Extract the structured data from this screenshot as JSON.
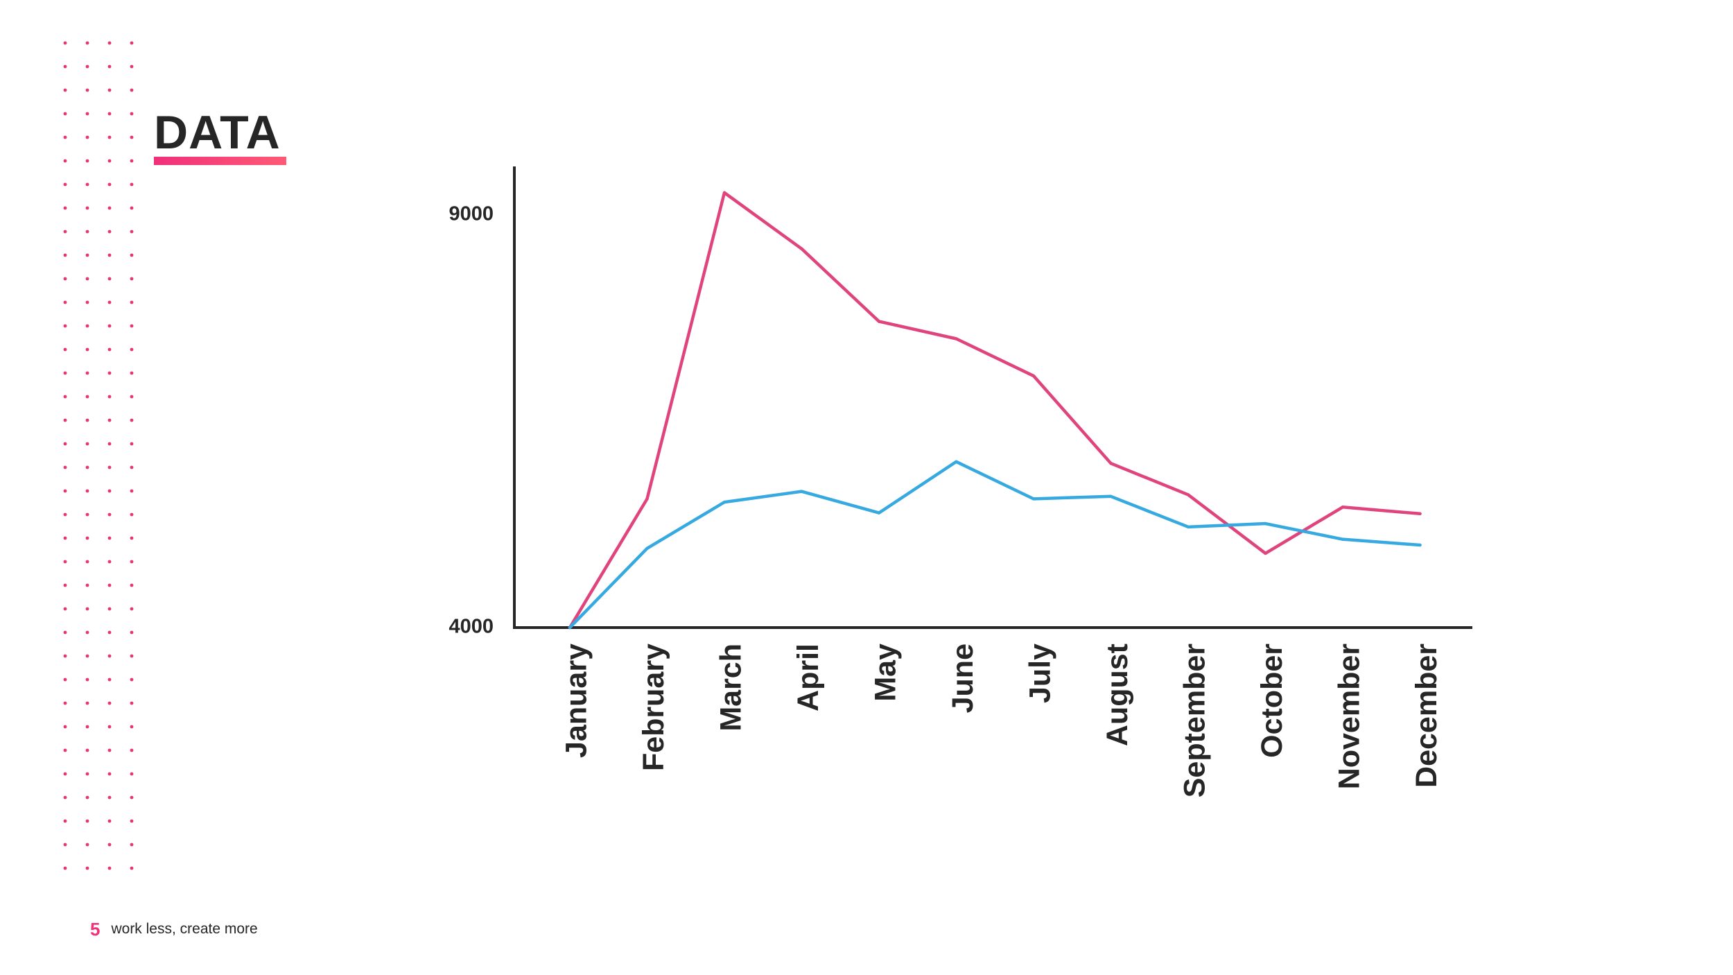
{
  "slide": {
    "title": "DATA",
    "accent_color": "#f0307a",
    "dot_color": "#e8336f",
    "text_color": "#262626"
  },
  "footer": {
    "page_number": "5",
    "tagline": "work less, create more"
  },
  "chart_data": {
    "type": "line",
    "title": "",
    "xlabel": "",
    "ylabel": "",
    "categories": [
      "January",
      "February",
      "March",
      "April",
      "May",
      "June",
      "July",
      "August",
      "September",
      "October",
      "November",
      "December"
    ],
    "y_ticks": [
      4000,
      9000
    ],
    "ylim": [
      4000,
      9000
    ],
    "grid": false,
    "legend": "none",
    "series": [
      {
        "color": "#e0447c",
        "values": [
          4000,
          5560,
          9270,
          8590,
          7710,
          7500,
          7050,
          5990,
          5610,
          4900,
          5460,
          5380
        ]
      },
      {
        "color": "#36a9e1",
        "values": [
          4000,
          4960,
          5520,
          5650,
          5390,
          6010,
          5560,
          5590,
          5220,
          5260,
          5070,
          5000
        ]
      }
    ]
  }
}
